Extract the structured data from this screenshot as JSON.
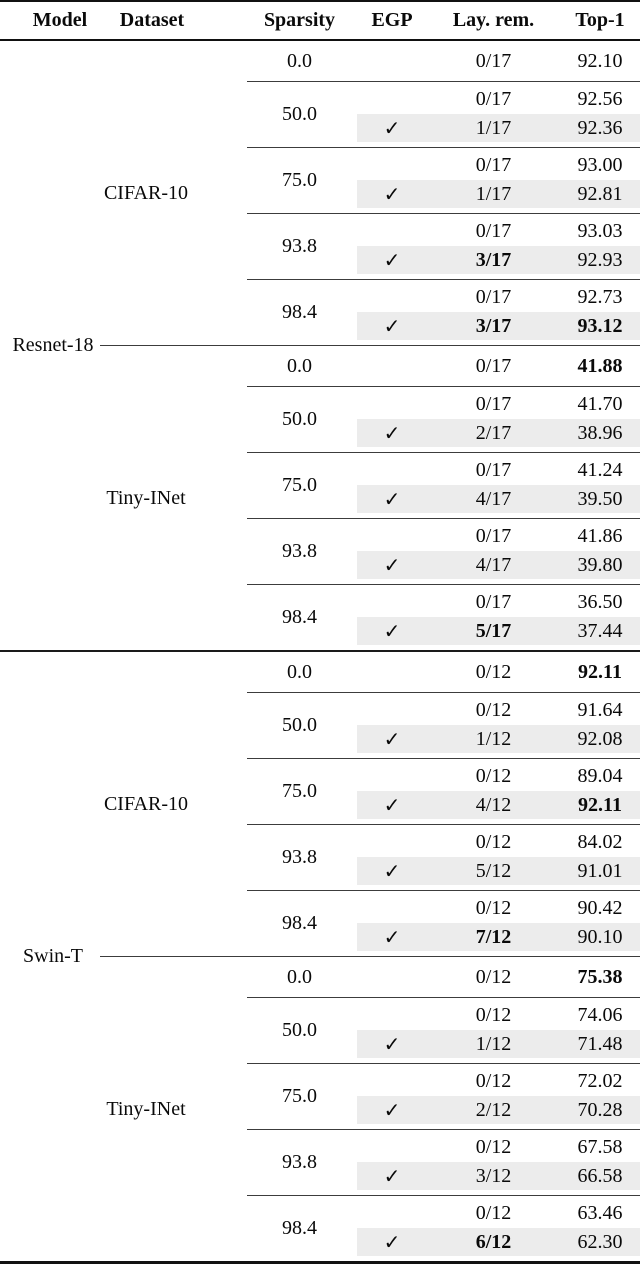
{
  "table": {
    "columns": [
      "Model",
      "Dataset",
      "Sparsity",
      "EGP",
      "Lay. rem.",
      "Top-1"
    ],
    "checkmark": "✓",
    "highlight_row_color": "#ececec",
    "models": [
      {
        "name": "Resnet-18",
        "datasets": [
          {
            "name": "CIFAR-10",
            "groups": [
              {
                "sparsity": "0.0",
                "rows": [
                  {
                    "egp": false,
                    "lay": "0/17",
                    "lay_bold": false,
                    "top1": "92.10",
                    "top1_bold": false
                  }
                ]
              },
              {
                "sparsity": "50.0",
                "rows": [
                  {
                    "egp": false,
                    "lay": "0/17",
                    "lay_bold": false,
                    "top1": "92.56",
                    "top1_bold": false
                  },
                  {
                    "egp": true,
                    "lay": "1/17",
                    "lay_bold": false,
                    "top1": "92.36",
                    "top1_bold": false
                  }
                ]
              },
              {
                "sparsity": "75.0",
                "rows": [
                  {
                    "egp": false,
                    "lay": "0/17",
                    "lay_bold": false,
                    "top1": "93.00",
                    "top1_bold": false
                  },
                  {
                    "egp": true,
                    "lay": "1/17",
                    "lay_bold": false,
                    "top1": "92.81",
                    "top1_bold": false
                  }
                ]
              },
              {
                "sparsity": "93.8",
                "rows": [
                  {
                    "egp": false,
                    "lay": "0/17",
                    "lay_bold": false,
                    "top1": "93.03",
                    "top1_bold": false
                  },
                  {
                    "egp": true,
                    "lay": "3/17",
                    "lay_bold": true,
                    "top1": "92.93",
                    "top1_bold": false
                  }
                ]
              },
              {
                "sparsity": "98.4",
                "rows": [
                  {
                    "egp": false,
                    "lay": "0/17",
                    "lay_bold": false,
                    "top1": "92.73",
                    "top1_bold": false
                  },
                  {
                    "egp": true,
                    "lay": "3/17",
                    "lay_bold": true,
                    "top1": "93.12",
                    "top1_bold": true
                  }
                ]
              }
            ]
          },
          {
            "name": "Tiny-INet",
            "groups": [
              {
                "sparsity": "0.0",
                "rows": [
                  {
                    "egp": false,
                    "lay": "0/17",
                    "lay_bold": false,
                    "top1": "41.88",
                    "top1_bold": true
                  }
                ]
              },
              {
                "sparsity": "50.0",
                "rows": [
                  {
                    "egp": false,
                    "lay": "0/17",
                    "lay_bold": false,
                    "top1": "41.70",
                    "top1_bold": false
                  },
                  {
                    "egp": true,
                    "lay": "2/17",
                    "lay_bold": false,
                    "top1": "38.96",
                    "top1_bold": false
                  }
                ]
              },
              {
                "sparsity": "75.0",
                "rows": [
                  {
                    "egp": false,
                    "lay": "0/17",
                    "lay_bold": false,
                    "top1": "41.24",
                    "top1_bold": false
                  },
                  {
                    "egp": true,
                    "lay": "4/17",
                    "lay_bold": false,
                    "top1": "39.50",
                    "top1_bold": false
                  }
                ]
              },
              {
                "sparsity": "93.8",
                "rows": [
                  {
                    "egp": false,
                    "lay": "0/17",
                    "lay_bold": false,
                    "top1": "41.86",
                    "top1_bold": false
                  },
                  {
                    "egp": true,
                    "lay": "4/17",
                    "lay_bold": false,
                    "top1": "39.80",
                    "top1_bold": false
                  }
                ]
              },
              {
                "sparsity": "98.4",
                "rows": [
                  {
                    "egp": false,
                    "lay": "0/17",
                    "lay_bold": false,
                    "top1": "36.50",
                    "top1_bold": false
                  },
                  {
                    "egp": true,
                    "lay": "5/17",
                    "lay_bold": true,
                    "top1": "37.44",
                    "top1_bold": false
                  }
                ]
              }
            ]
          }
        ]
      },
      {
        "name": "Swin-T",
        "datasets": [
          {
            "name": "CIFAR-10",
            "groups": [
              {
                "sparsity": "0.0",
                "rows": [
                  {
                    "egp": false,
                    "lay": "0/12",
                    "lay_bold": false,
                    "top1": "92.11",
                    "top1_bold": true
                  }
                ]
              },
              {
                "sparsity": "50.0",
                "rows": [
                  {
                    "egp": false,
                    "lay": "0/12",
                    "lay_bold": false,
                    "top1": "91.64",
                    "top1_bold": false
                  },
                  {
                    "egp": true,
                    "lay": "1/12",
                    "lay_bold": false,
                    "top1": "92.08",
                    "top1_bold": false
                  }
                ]
              },
              {
                "sparsity": "75.0",
                "rows": [
                  {
                    "egp": false,
                    "lay": "0/12",
                    "lay_bold": false,
                    "top1": "89.04",
                    "top1_bold": false
                  },
                  {
                    "egp": true,
                    "lay": "4/12",
                    "lay_bold": false,
                    "top1": "92.11",
                    "top1_bold": true
                  }
                ]
              },
              {
                "sparsity": "93.8",
                "rows": [
                  {
                    "egp": false,
                    "lay": "0/12",
                    "lay_bold": false,
                    "top1": "84.02",
                    "top1_bold": false
                  },
                  {
                    "egp": true,
                    "lay": "5/12",
                    "lay_bold": false,
                    "top1": "91.01",
                    "top1_bold": false
                  }
                ]
              },
              {
                "sparsity": "98.4",
                "rows": [
                  {
                    "egp": false,
                    "lay": "0/12",
                    "lay_bold": false,
                    "top1": "90.42",
                    "top1_bold": false
                  },
                  {
                    "egp": true,
                    "lay": "7/12",
                    "lay_bold": true,
                    "top1": "90.10",
                    "top1_bold": false
                  }
                ]
              }
            ]
          },
          {
            "name": "Tiny-INet",
            "groups": [
              {
                "sparsity": "0.0",
                "rows": [
                  {
                    "egp": false,
                    "lay": "0/12",
                    "lay_bold": false,
                    "top1": "75.38",
                    "top1_bold": true
                  }
                ]
              },
              {
                "sparsity": "50.0",
                "rows": [
                  {
                    "egp": false,
                    "lay": "0/12",
                    "lay_bold": false,
                    "top1": "74.06",
                    "top1_bold": false
                  },
                  {
                    "egp": true,
                    "lay": "1/12",
                    "lay_bold": false,
                    "top1": "71.48",
                    "top1_bold": false
                  }
                ]
              },
              {
                "sparsity": "75.0",
                "rows": [
                  {
                    "egp": false,
                    "lay": "0/12",
                    "lay_bold": false,
                    "top1": "72.02",
                    "top1_bold": false
                  },
                  {
                    "egp": true,
                    "lay": "2/12",
                    "lay_bold": false,
                    "top1": "70.28",
                    "top1_bold": false
                  }
                ]
              },
              {
                "sparsity": "93.8",
                "rows": [
                  {
                    "egp": false,
                    "lay": "0/12",
                    "lay_bold": false,
                    "top1": "67.58",
                    "top1_bold": false
                  },
                  {
                    "egp": true,
                    "lay": "3/12",
                    "lay_bold": false,
                    "top1": "66.58",
                    "top1_bold": false
                  }
                ]
              },
              {
                "sparsity": "98.4",
                "rows": [
                  {
                    "egp": false,
                    "lay": "0/12",
                    "lay_bold": false,
                    "top1": "63.46",
                    "top1_bold": false
                  },
                  {
                    "egp": true,
                    "lay": "6/12",
                    "lay_bold": true,
                    "top1": "62.30",
                    "top1_bold": false
                  }
                ]
              }
            ]
          }
        ]
      }
    ]
  }
}
